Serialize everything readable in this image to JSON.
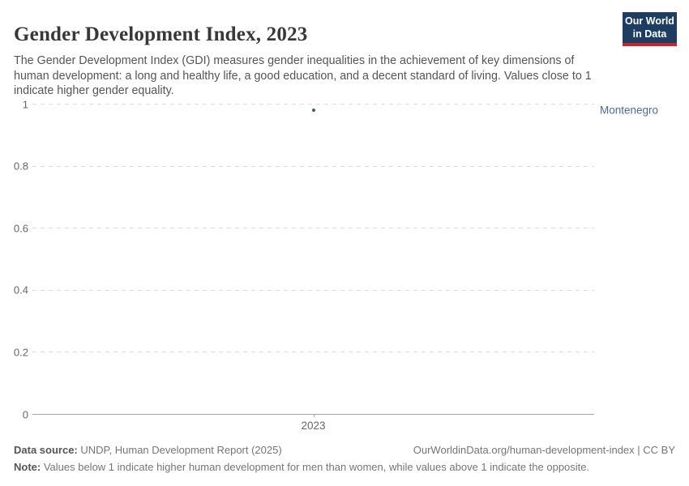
{
  "header": {
    "title": "Gender Development Index, 2023",
    "subtitle": "The Gender Development Index (GDI) measures gender inequalities in the achievement of key dimensions of human development: a long and healthy life, a good education, and a decent standard of living. Values close to 1 indicate higher gender equality.",
    "logo": {
      "line1": "Our World",
      "line2": "in Data",
      "bg_color": "#1d3d63",
      "bar_color": "#c5262e"
    }
  },
  "chart_data": {
    "type": "scatter",
    "title": "Gender Development Index, 2023",
    "x_ticks": [
      "2023"
    ],
    "y_ticks": [
      0,
      0.2,
      0.4,
      0.6,
      0.8,
      1
    ],
    "ylim": [
      0,
      1
    ],
    "xlabel": "",
    "ylabel": "",
    "grid": "horizontal-dashed",
    "legend_position": "right-of-plot",
    "series": [
      {
        "name": "Montenegro",
        "x": [
          "2023"
        ],
        "values": [
          0.98
        ],
        "point_color": "#3d5c8c",
        "label_color": "#4d6a9d"
      }
    ],
    "colors": {
      "gridline": "#dcdcdc",
      "axis": "#a3a3a3",
      "tick_text": "#666666"
    }
  },
  "footer": {
    "source_label": "Data source:",
    "source_text": " UNDP, Human Development Report (2025)",
    "link_text": "OurWorldinData.org/human-development-index | CC BY",
    "note_label": "Note:",
    "note_text": " Values below 1 indicate higher human development for men than women, while values above 1 indicate the opposite."
  }
}
